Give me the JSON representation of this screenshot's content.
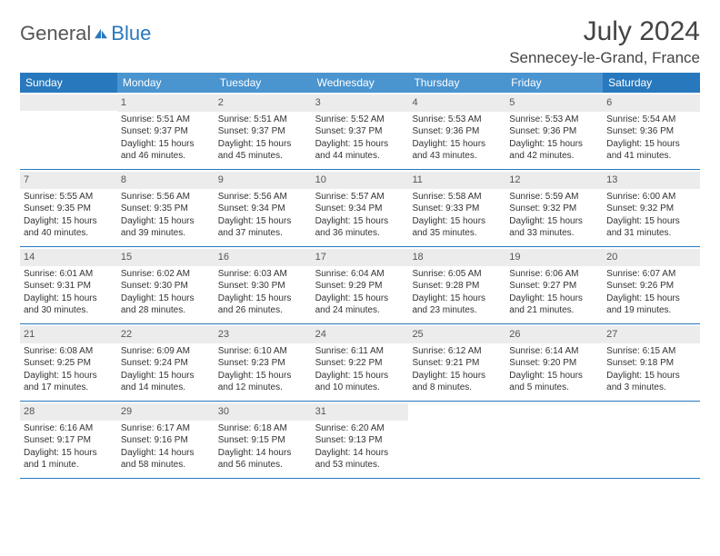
{
  "logo": {
    "part1": "General",
    "part2": "Blue"
  },
  "title": "July 2024",
  "location": "Sennecey-le-Grand, France",
  "weekday_header": {
    "bg_edge": "#2878bd",
    "bg_mid": "#4a94d0",
    "text_color": "#ffffff",
    "labels": [
      "Sunday",
      "Monday",
      "Tuesday",
      "Wednesday",
      "Thursday",
      "Friday",
      "Saturday"
    ]
  },
  "cell_header_bg": "#ececec",
  "week_border_color": "#2878bd",
  "weeks": [
    [
      {
        "empty": true
      },
      {
        "n": "1",
        "sr": "Sunrise: 5:51 AM",
        "ss": "Sunset: 9:37 PM",
        "d1": "Daylight: 15 hours",
        "d2": "and 46 minutes."
      },
      {
        "n": "2",
        "sr": "Sunrise: 5:51 AM",
        "ss": "Sunset: 9:37 PM",
        "d1": "Daylight: 15 hours",
        "d2": "and 45 minutes."
      },
      {
        "n": "3",
        "sr": "Sunrise: 5:52 AM",
        "ss": "Sunset: 9:37 PM",
        "d1": "Daylight: 15 hours",
        "d2": "and 44 minutes."
      },
      {
        "n": "4",
        "sr": "Sunrise: 5:53 AM",
        "ss": "Sunset: 9:36 PM",
        "d1": "Daylight: 15 hours",
        "d2": "and 43 minutes."
      },
      {
        "n": "5",
        "sr": "Sunrise: 5:53 AM",
        "ss": "Sunset: 9:36 PM",
        "d1": "Daylight: 15 hours",
        "d2": "and 42 minutes."
      },
      {
        "n": "6",
        "sr": "Sunrise: 5:54 AM",
        "ss": "Sunset: 9:36 PM",
        "d1": "Daylight: 15 hours",
        "d2": "and 41 minutes."
      }
    ],
    [
      {
        "n": "7",
        "sr": "Sunrise: 5:55 AM",
        "ss": "Sunset: 9:35 PM",
        "d1": "Daylight: 15 hours",
        "d2": "and 40 minutes."
      },
      {
        "n": "8",
        "sr": "Sunrise: 5:56 AM",
        "ss": "Sunset: 9:35 PM",
        "d1": "Daylight: 15 hours",
        "d2": "and 39 minutes."
      },
      {
        "n": "9",
        "sr": "Sunrise: 5:56 AM",
        "ss": "Sunset: 9:34 PM",
        "d1": "Daylight: 15 hours",
        "d2": "and 37 minutes."
      },
      {
        "n": "10",
        "sr": "Sunrise: 5:57 AM",
        "ss": "Sunset: 9:34 PM",
        "d1": "Daylight: 15 hours",
        "d2": "and 36 minutes."
      },
      {
        "n": "11",
        "sr": "Sunrise: 5:58 AM",
        "ss": "Sunset: 9:33 PM",
        "d1": "Daylight: 15 hours",
        "d2": "and 35 minutes."
      },
      {
        "n": "12",
        "sr": "Sunrise: 5:59 AM",
        "ss": "Sunset: 9:32 PM",
        "d1": "Daylight: 15 hours",
        "d2": "and 33 minutes."
      },
      {
        "n": "13",
        "sr": "Sunrise: 6:00 AM",
        "ss": "Sunset: 9:32 PM",
        "d1": "Daylight: 15 hours",
        "d2": "and 31 minutes."
      }
    ],
    [
      {
        "n": "14",
        "sr": "Sunrise: 6:01 AM",
        "ss": "Sunset: 9:31 PM",
        "d1": "Daylight: 15 hours",
        "d2": "and 30 minutes."
      },
      {
        "n": "15",
        "sr": "Sunrise: 6:02 AM",
        "ss": "Sunset: 9:30 PM",
        "d1": "Daylight: 15 hours",
        "d2": "and 28 minutes."
      },
      {
        "n": "16",
        "sr": "Sunrise: 6:03 AM",
        "ss": "Sunset: 9:30 PM",
        "d1": "Daylight: 15 hours",
        "d2": "and 26 minutes."
      },
      {
        "n": "17",
        "sr": "Sunrise: 6:04 AM",
        "ss": "Sunset: 9:29 PM",
        "d1": "Daylight: 15 hours",
        "d2": "and 24 minutes."
      },
      {
        "n": "18",
        "sr": "Sunrise: 6:05 AM",
        "ss": "Sunset: 9:28 PM",
        "d1": "Daylight: 15 hours",
        "d2": "and 23 minutes."
      },
      {
        "n": "19",
        "sr": "Sunrise: 6:06 AM",
        "ss": "Sunset: 9:27 PM",
        "d1": "Daylight: 15 hours",
        "d2": "and 21 minutes."
      },
      {
        "n": "20",
        "sr": "Sunrise: 6:07 AM",
        "ss": "Sunset: 9:26 PM",
        "d1": "Daylight: 15 hours",
        "d2": "and 19 minutes."
      }
    ],
    [
      {
        "n": "21",
        "sr": "Sunrise: 6:08 AM",
        "ss": "Sunset: 9:25 PM",
        "d1": "Daylight: 15 hours",
        "d2": "and 17 minutes."
      },
      {
        "n": "22",
        "sr": "Sunrise: 6:09 AM",
        "ss": "Sunset: 9:24 PM",
        "d1": "Daylight: 15 hours",
        "d2": "and 14 minutes."
      },
      {
        "n": "23",
        "sr": "Sunrise: 6:10 AM",
        "ss": "Sunset: 9:23 PM",
        "d1": "Daylight: 15 hours",
        "d2": "and 12 minutes."
      },
      {
        "n": "24",
        "sr": "Sunrise: 6:11 AM",
        "ss": "Sunset: 9:22 PM",
        "d1": "Daylight: 15 hours",
        "d2": "and 10 minutes."
      },
      {
        "n": "25",
        "sr": "Sunrise: 6:12 AM",
        "ss": "Sunset: 9:21 PM",
        "d1": "Daylight: 15 hours",
        "d2": "and 8 minutes."
      },
      {
        "n": "26",
        "sr": "Sunrise: 6:14 AM",
        "ss": "Sunset: 9:20 PM",
        "d1": "Daylight: 15 hours",
        "d2": "and 5 minutes."
      },
      {
        "n": "27",
        "sr": "Sunrise: 6:15 AM",
        "ss": "Sunset: 9:18 PM",
        "d1": "Daylight: 15 hours",
        "d2": "and 3 minutes."
      }
    ],
    [
      {
        "n": "28",
        "sr": "Sunrise: 6:16 AM",
        "ss": "Sunset: 9:17 PM",
        "d1": "Daylight: 15 hours",
        "d2": "and 1 minute."
      },
      {
        "n": "29",
        "sr": "Sunrise: 6:17 AM",
        "ss": "Sunset: 9:16 PM",
        "d1": "Daylight: 14 hours",
        "d2": "and 58 minutes."
      },
      {
        "n": "30",
        "sr": "Sunrise: 6:18 AM",
        "ss": "Sunset: 9:15 PM",
        "d1": "Daylight: 14 hours",
        "d2": "and 56 minutes."
      },
      {
        "n": "31",
        "sr": "Sunrise: 6:20 AM",
        "ss": "Sunset: 9:13 PM",
        "d1": "Daylight: 14 hours",
        "d2": "and 53 minutes."
      },
      {
        "blank": true
      },
      {
        "blank": true
      },
      {
        "blank": true
      }
    ]
  ]
}
